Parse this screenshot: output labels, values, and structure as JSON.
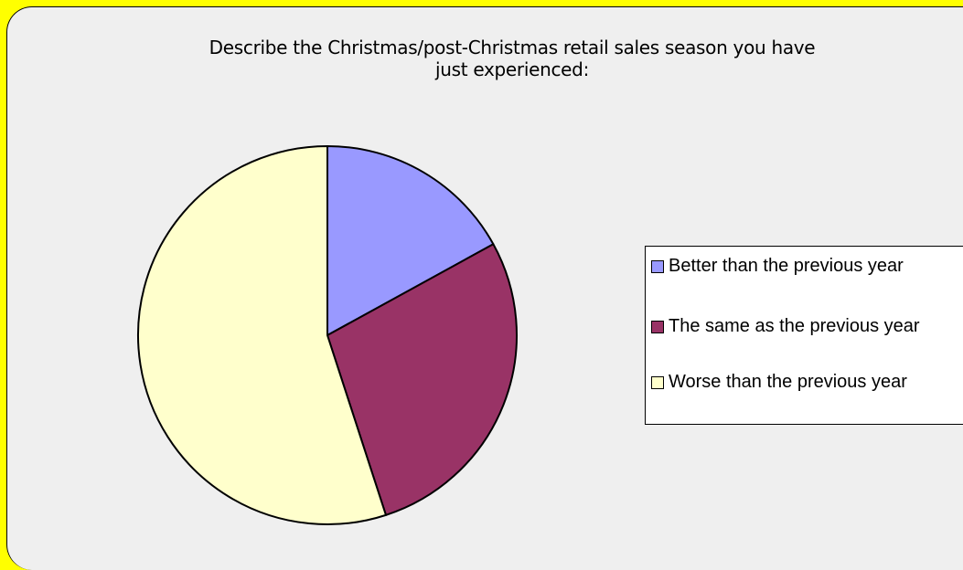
{
  "chart_data": {
    "type": "pie",
    "title": "Describe the Christmas/post-Christmas retail sales season you have just experienced:",
    "title_lines": [
      "Describe the Christmas/post-Christmas retail sales season you have",
      "just experienced:"
    ],
    "categories": [
      "Better than the previous year",
      "The same as the previous year",
      "Worse than the previous year"
    ],
    "values": [
      17,
      28,
      55
    ],
    "colors": [
      "#9999ff",
      "#993366",
      "#ffffcc"
    ],
    "legend_position": "right",
    "start_angle": "12 o'clock, clockwise"
  }
}
